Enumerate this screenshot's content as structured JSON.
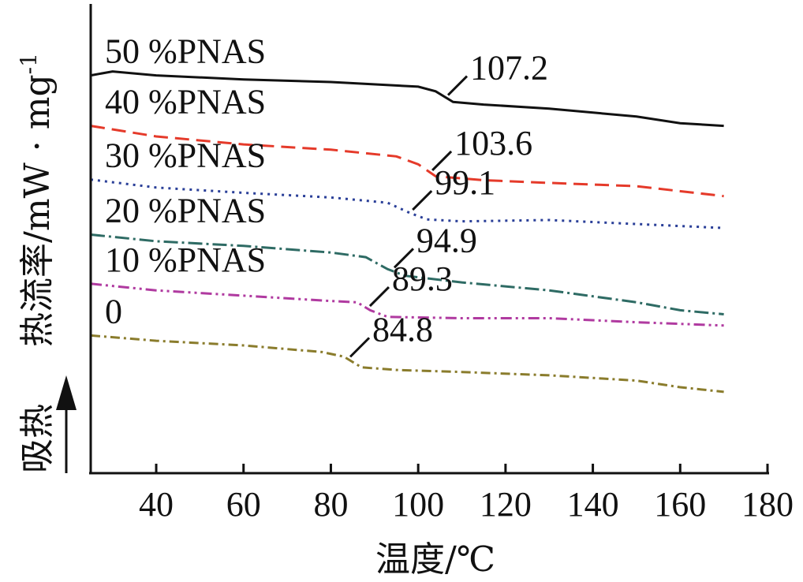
{
  "chart_data": {
    "type": "line",
    "xlabel": "温度/℃",
    "ylabel": "热流率/mW · mg",
    "ylabel_superscript": "-1",
    "direction_label": "吸热",
    "xlim": [
      25,
      180
    ],
    "xticks": [
      40,
      60,
      80,
      100,
      120,
      140,
      160,
      180
    ],
    "yticks": [],
    "grid": false,
    "series": [
      {
        "name": "50 %PNAS",
        "color": "#111111",
        "dash": "solid",
        "tg": 107.2,
        "tg_label": "107.2",
        "points": [
          [
            25,
            3.62
          ],
          [
            30,
            3.68
          ],
          [
            40,
            3.62
          ],
          [
            60,
            3.56
          ],
          [
            80,
            3.52
          ],
          [
            100,
            3.45
          ],
          [
            104,
            3.38
          ],
          [
            108,
            3.22
          ],
          [
            115,
            3.18
          ],
          [
            130,
            3.12
          ],
          [
            150,
            3.0
          ],
          [
            160,
            2.9
          ],
          [
            170,
            2.86
          ]
        ]
      },
      {
        "name": "40 %PNAS",
        "color": "#e53a2a",
        "dash": "18 9",
        "tg": 103.6,
        "tg_label": "103.6",
        "points": [
          [
            25,
            2.86
          ],
          [
            40,
            2.7
          ],
          [
            60,
            2.58
          ],
          [
            80,
            2.5
          ],
          [
            95,
            2.4
          ],
          [
            100,
            2.28
          ],
          [
            104,
            2.1
          ],
          [
            115,
            2.04
          ],
          [
            130,
            2.0
          ],
          [
            150,
            1.95
          ],
          [
            170,
            1.8
          ]
        ]
      },
      {
        "name": "30 %PNAS",
        "color": "#2a3f98",
        "dash": "3 6",
        "tg": 99.1,
        "tg_label": "99.1",
        "points": [
          [
            25,
            2.05
          ],
          [
            40,
            1.93
          ],
          [
            60,
            1.85
          ],
          [
            80,
            1.78
          ],
          [
            93,
            1.7
          ],
          [
            98,
            1.55
          ],
          [
            102,
            1.45
          ],
          [
            110,
            1.42
          ],
          [
            130,
            1.44
          ],
          [
            150,
            1.38
          ],
          [
            170,
            1.32
          ]
        ]
      },
      {
        "name": "20 %PNAS",
        "color": "#2e6b64",
        "dash": "18 5 3 5",
        "tg": 94.9,
        "tg_label": "94.9",
        "points": [
          [
            25,
            1.22
          ],
          [
            40,
            1.12
          ],
          [
            60,
            1.05
          ],
          [
            80,
            0.95
          ],
          [
            88,
            0.88
          ],
          [
            93,
            0.7
          ],
          [
            97,
            0.6
          ],
          [
            110,
            0.5
          ],
          [
            130,
            0.38
          ],
          [
            150,
            0.2
          ],
          [
            160,
            0.08
          ],
          [
            170,
            0.02
          ]
        ]
      },
      {
        "name": "10 %PNAS",
        "color": "#b03aa0",
        "dash": "14 5 3 5 3 5",
        "tg": 89.3,
        "tg_label": "89.3",
        "points": [
          [
            25,
            0.48
          ],
          [
            40,
            0.38
          ],
          [
            60,
            0.3
          ],
          [
            80,
            0.22
          ],
          [
            86,
            0.2
          ],
          [
            89,
            0.08
          ],
          [
            93,
            -0.02
          ],
          [
            110,
            -0.04
          ],
          [
            130,
            -0.04
          ],
          [
            150,
            -0.1
          ],
          [
            170,
            -0.15
          ]
        ]
      },
      {
        "name": "0",
        "color": "#8a7c2c",
        "dash": "12 5 3 5",
        "tg": 84.8,
        "tg_label": "84.8",
        "points": [
          [
            25,
            -0.3
          ],
          [
            40,
            -0.38
          ],
          [
            60,
            -0.45
          ],
          [
            78,
            -0.55
          ],
          [
            83,
            -0.62
          ],
          [
            87,
            -0.78
          ],
          [
            95,
            -0.82
          ],
          [
            110,
            -0.85
          ],
          [
            130,
            -0.9
          ],
          [
            150,
            -0.98
          ],
          [
            160,
            -1.08
          ],
          [
            170,
            -1.15
          ]
        ]
      }
    ]
  }
}
